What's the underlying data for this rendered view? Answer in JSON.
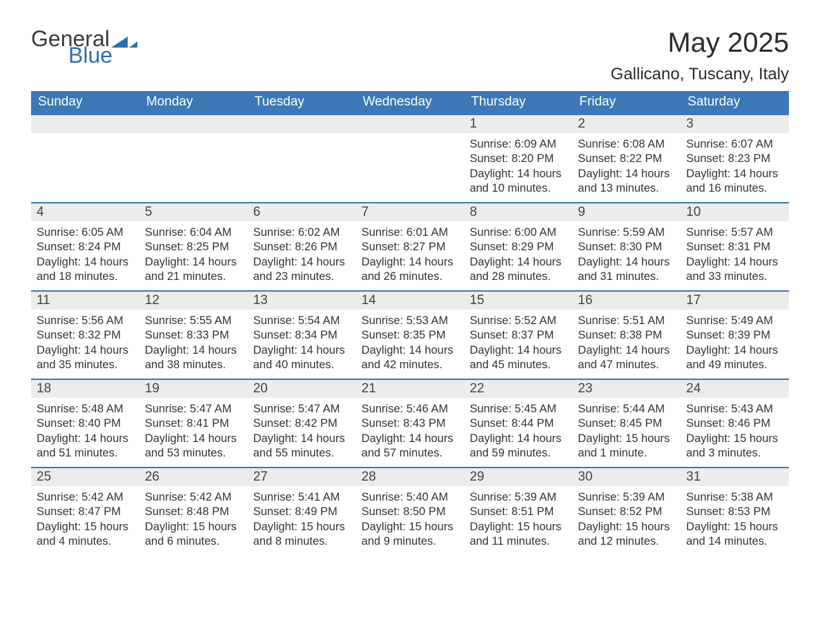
{
  "brand": {
    "text_general": "General",
    "text_blue": "Blue",
    "triangle_color": "#2f6fb0"
  },
  "header": {
    "month_title": "May 2025",
    "location": "Gallicano, Tuscany, Italy"
  },
  "styling": {
    "header_bg": "#3b78b5",
    "header_text_color": "#ffffff",
    "daynum_bg": "#ececec",
    "daynum_text_color": "#444444",
    "body_text_color": "#333333",
    "row_divider_color": "#3b78b5",
    "page_bg": "#ffffff",
    "header_fontsize": 19,
    "daynum_fontsize": 19,
    "body_fontsize": 16.5,
    "title_fontsize": 40,
    "location_fontsize": 24,
    "logo_fontsize": 32
  },
  "day_headers": [
    "Sunday",
    "Monday",
    "Tuesday",
    "Wednesday",
    "Thursday",
    "Friday",
    "Saturday"
  ],
  "weeks": [
    [
      {
        "day": "",
        "sunrise": "",
        "sunset": "",
        "daylight": ""
      },
      {
        "day": "",
        "sunrise": "",
        "sunset": "",
        "daylight": ""
      },
      {
        "day": "",
        "sunrise": "",
        "sunset": "",
        "daylight": ""
      },
      {
        "day": "",
        "sunrise": "",
        "sunset": "",
        "daylight": ""
      },
      {
        "day": "1",
        "sunrise": "Sunrise: 6:09 AM",
        "sunset": "Sunset: 8:20 PM",
        "daylight": "Daylight: 14 hours and 10 minutes."
      },
      {
        "day": "2",
        "sunrise": "Sunrise: 6:08 AM",
        "sunset": "Sunset: 8:22 PM",
        "daylight": "Daylight: 14 hours and 13 minutes."
      },
      {
        "day": "3",
        "sunrise": "Sunrise: 6:07 AM",
        "sunset": "Sunset: 8:23 PM",
        "daylight": "Daylight: 14 hours and 16 minutes."
      }
    ],
    [
      {
        "day": "4",
        "sunrise": "Sunrise: 6:05 AM",
        "sunset": "Sunset: 8:24 PM",
        "daylight": "Daylight: 14 hours and 18 minutes."
      },
      {
        "day": "5",
        "sunrise": "Sunrise: 6:04 AM",
        "sunset": "Sunset: 8:25 PM",
        "daylight": "Daylight: 14 hours and 21 minutes."
      },
      {
        "day": "6",
        "sunrise": "Sunrise: 6:02 AM",
        "sunset": "Sunset: 8:26 PM",
        "daylight": "Daylight: 14 hours and 23 minutes."
      },
      {
        "day": "7",
        "sunrise": "Sunrise: 6:01 AM",
        "sunset": "Sunset: 8:27 PM",
        "daylight": "Daylight: 14 hours and 26 minutes."
      },
      {
        "day": "8",
        "sunrise": "Sunrise: 6:00 AM",
        "sunset": "Sunset: 8:29 PM",
        "daylight": "Daylight: 14 hours and 28 minutes."
      },
      {
        "day": "9",
        "sunrise": "Sunrise: 5:59 AM",
        "sunset": "Sunset: 8:30 PM",
        "daylight": "Daylight: 14 hours and 31 minutes."
      },
      {
        "day": "10",
        "sunrise": "Sunrise: 5:57 AM",
        "sunset": "Sunset: 8:31 PM",
        "daylight": "Daylight: 14 hours and 33 minutes."
      }
    ],
    [
      {
        "day": "11",
        "sunrise": "Sunrise: 5:56 AM",
        "sunset": "Sunset: 8:32 PM",
        "daylight": "Daylight: 14 hours and 35 minutes."
      },
      {
        "day": "12",
        "sunrise": "Sunrise: 5:55 AM",
        "sunset": "Sunset: 8:33 PM",
        "daylight": "Daylight: 14 hours and 38 minutes."
      },
      {
        "day": "13",
        "sunrise": "Sunrise: 5:54 AM",
        "sunset": "Sunset: 8:34 PM",
        "daylight": "Daylight: 14 hours and 40 minutes."
      },
      {
        "day": "14",
        "sunrise": "Sunrise: 5:53 AM",
        "sunset": "Sunset: 8:35 PM",
        "daylight": "Daylight: 14 hours and 42 minutes."
      },
      {
        "day": "15",
        "sunrise": "Sunrise: 5:52 AM",
        "sunset": "Sunset: 8:37 PM",
        "daylight": "Daylight: 14 hours and 45 minutes."
      },
      {
        "day": "16",
        "sunrise": "Sunrise: 5:51 AM",
        "sunset": "Sunset: 8:38 PM",
        "daylight": "Daylight: 14 hours and 47 minutes."
      },
      {
        "day": "17",
        "sunrise": "Sunrise: 5:49 AM",
        "sunset": "Sunset: 8:39 PM",
        "daylight": "Daylight: 14 hours and 49 minutes."
      }
    ],
    [
      {
        "day": "18",
        "sunrise": "Sunrise: 5:48 AM",
        "sunset": "Sunset: 8:40 PM",
        "daylight": "Daylight: 14 hours and 51 minutes."
      },
      {
        "day": "19",
        "sunrise": "Sunrise: 5:47 AM",
        "sunset": "Sunset: 8:41 PM",
        "daylight": "Daylight: 14 hours and 53 minutes."
      },
      {
        "day": "20",
        "sunrise": "Sunrise: 5:47 AM",
        "sunset": "Sunset: 8:42 PM",
        "daylight": "Daylight: 14 hours and 55 minutes."
      },
      {
        "day": "21",
        "sunrise": "Sunrise: 5:46 AM",
        "sunset": "Sunset: 8:43 PM",
        "daylight": "Daylight: 14 hours and 57 minutes."
      },
      {
        "day": "22",
        "sunrise": "Sunrise: 5:45 AM",
        "sunset": "Sunset: 8:44 PM",
        "daylight": "Daylight: 14 hours and 59 minutes."
      },
      {
        "day": "23",
        "sunrise": "Sunrise: 5:44 AM",
        "sunset": "Sunset: 8:45 PM",
        "daylight": "Daylight: 15 hours and 1 minute."
      },
      {
        "day": "24",
        "sunrise": "Sunrise: 5:43 AM",
        "sunset": "Sunset: 8:46 PM",
        "daylight": "Daylight: 15 hours and 3 minutes."
      }
    ],
    [
      {
        "day": "25",
        "sunrise": "Sunrise: 5:42 AM",
        "sunset": "Sunset: 8:47 PM",
        "daylight": "Daylight: 15 hours and 4 minutes."
      },
      {
        "day": "26",
        "sunrise": "Sunrise: 5:42 AM",
        "sunset": "Sunset: 8:48 PM",
        "daylight": "Daylight: 15 hours and 6 minutes."
      },
      {
        "day": "27",
        "sunrise": "Sunrise: 5:41 AM",
        "sunset": "Sunset: 8:49 PM",
        "daylight": "Daylight: 15 hours and 8 minutes."
      },
      {
        "day": "28",
        "sunrise": "Sunrise: 5:40 AM",
        "sunset": "Sunset: 8:50 PM",
        "daylight": "Daylight: 15 hours and 9 minutes."
      },
      {
        "day": "29",
        "sunrise": "Sunrise: 5:39 AM",
        "sunset": "Sunset: 8:51 PM",
        "daylight": "Daylight: 15 hours and 11 minutes."
      },
      {
        "day": "30",
        "sunrise": "Sunrise: 5:39 AM",
        "sunset": "Sunset: 8:52 PM",
        "daylight": "Daylight: 15 hours and 12 minutes."
      },
      {
        "day": "31",
        "sunrise": "Sunrise: 5:38 AM",
        "sunset": "Sunset: 8:53 PM",
        "daylight": "Daylight: 15 hours and 14 minutes."
      }
    ]
  ]
}
